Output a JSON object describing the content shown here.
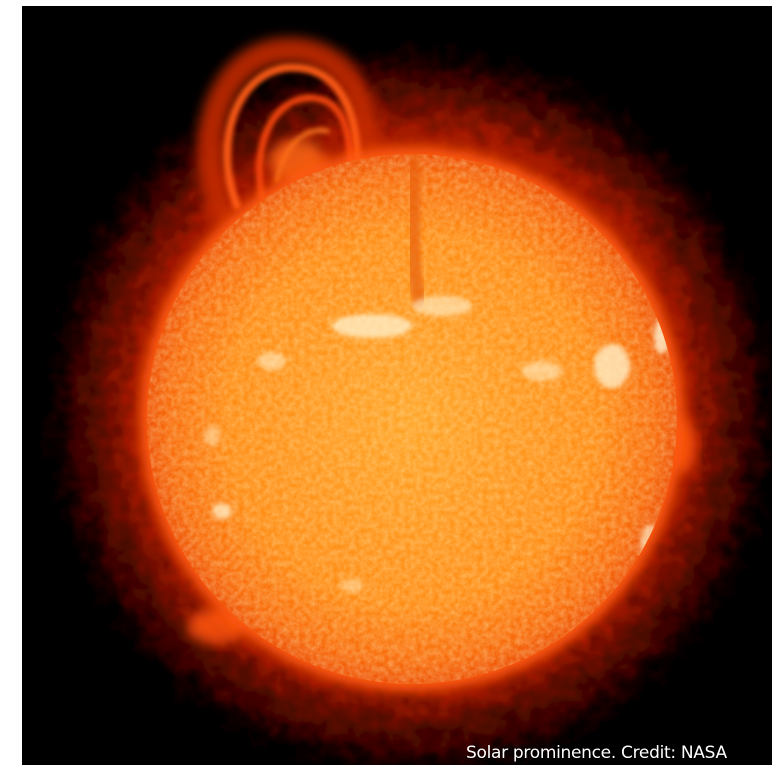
{
  "photo": {
    "subject-icon": "sun-icon",
    "colors": {
      "background": "#000000",
      "corona_outer": "#8a0a00",
      "corona_inner": "#e23a05",
      "limb": "#f25a08",
      "disk_mid": "#ff8a12",
      "disk_center": "#ffa426",
      "bright_regions": "#fff3d0"
    }
  },
  "caption": {
    "text": "Solar prominence. Credit: NASA"
  }
}
